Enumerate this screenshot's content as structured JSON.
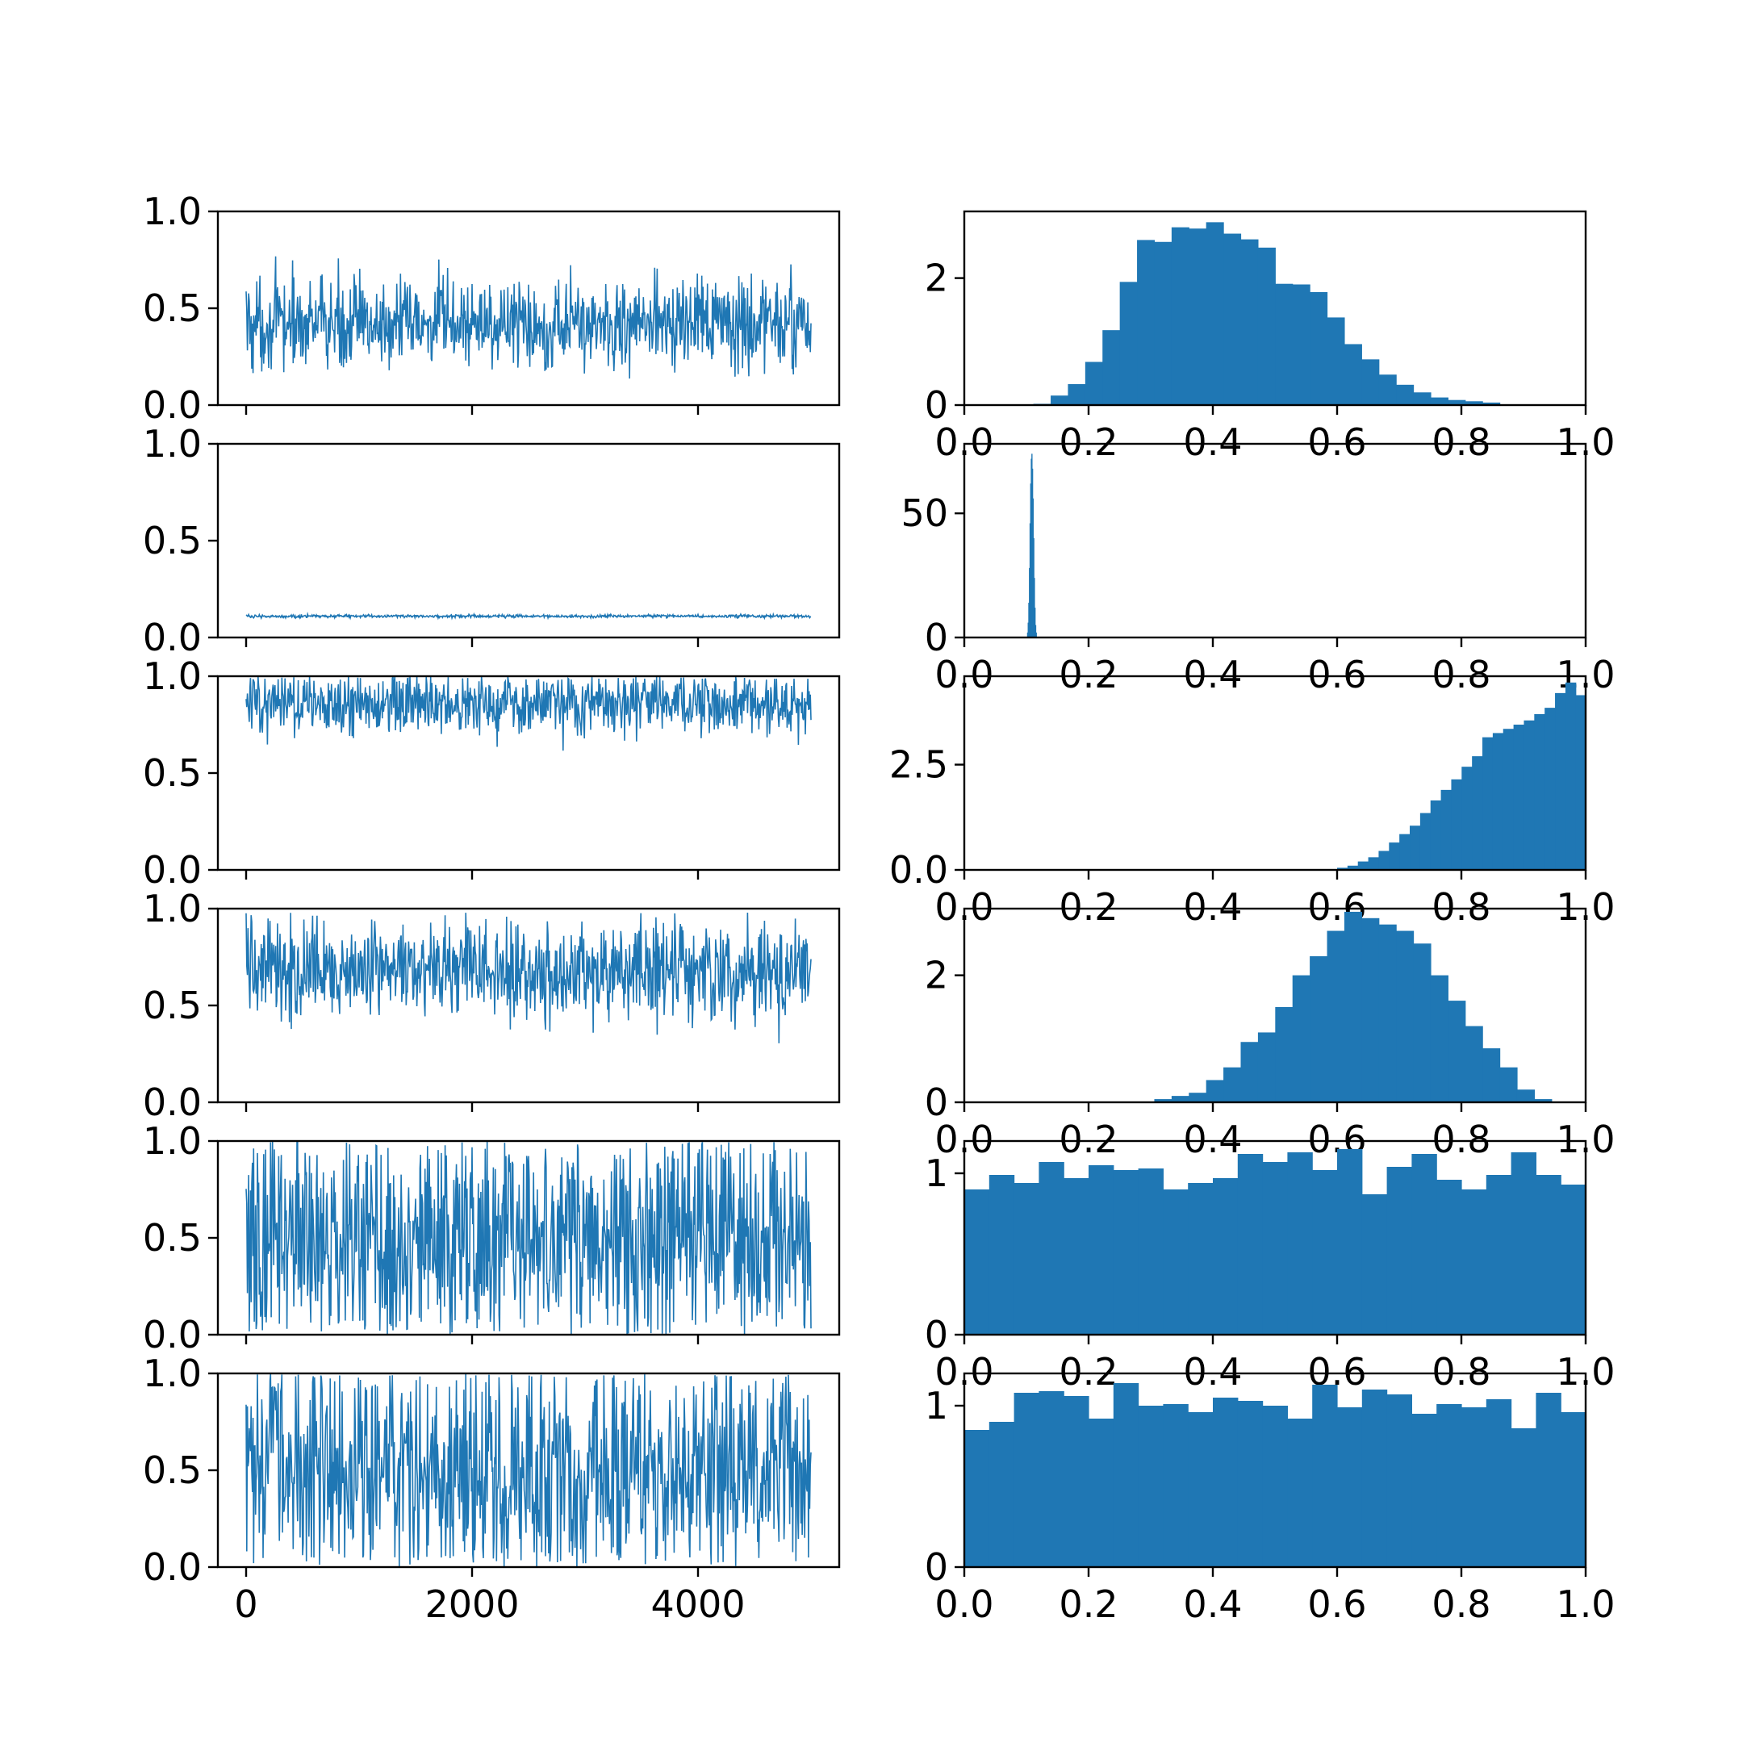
{
  "figure": {
    "line_color": "#1f77b4",
    "bar_color": "#1f77b4"
  },
  "chart_data": [
    {
      "type": "line",
      "panel": "trace-1",
      "x_range": [
        0,
        5000
      ],
      "xlim": [
        -250,
        5250
      ],
      "ylim": [
        0,
        1
      ],
      "yticks": [
        "0.0",
        "0.5",
        "1.0"
      ],
      "xticks": [
        "0",
        "2000",
        "4000"
      ],
      "xticks_visible": false,
      "trace": {
        "center": 0.42,
        "low": 0.13,
        "high": 0.82,
        "noise": 0.12
      }
    },
    {
      "type": "bar",
      "panel": "hist-1",
      "xlim": [
        0,
        1
      ],
      "ylim": [
        0,
        3.05
      ],
      "yticks": [
        "0",
        "2"
      ],
      "ytick_values": [
        0,
        2
      ],
      "xticks": [
        "0.0",
        "0.2",
        "0.4",
        "0.6",
        "0.8",
        "1.0"
      ],
      "xticks_visible": true,
      "bin_start": 0.0,
      "bin_width": 0.0278,
      "values": [
        0,
        0,
        0,
        0,
        0.02,
        0.15,
        0.33,
        0.68,
        1.18,
        1.94,
        2.6,
        2.57,
        2.8,
        2.78,
        2.88,
        2.7,
        2.61,
        2.48,
        1.91,
        1.9,
        1.78,
        1.38,
        0.96,
        0.72,
        0.48,
        0.32,
        0.2,
        0.12,
        0.08,
        0.06,
        0.04,
        0,
        0,
        0,
        0,
        0
      ]
    },
    {
      "type": "line",
      "panel": "trace-2",
      "x_range": [
        0,
        5000
      ],
      "xlim": [
        -250,
        5250
      ],
      "ylim": [
        0,
        1
      ],
      "yticks": [
        "0.0",
        "0.5",
        "1.0"
      ],
      "xticks": [
        "0",
        "2000",
        "4000"
      ],
      "xticks_visible": false,
      "trace": {
        "center": 0.11,
        "low": 0.1,
        "high": 0.12,
        "noise": 0.004
      }
    },
    {
      "type": "bar",
      "panel": "hist-2",
      "xlim": [
        0,
        1
      ],
      "ylim": [
        0,
        78
      ],
      "yticks": [
        "0",
        "50"
      ],
      "ytick_values": [
        0,
        50
      ],
      "xticks": [
        "0.0",
        "0.2",
        "0.4",
        "0.6",
        "0.8",
        "1.0"
      ],
      "xticks_visible": true,
      "bin_start": 0.1,
      "bin_width": 0.001,
      "values": [
        0,
        2,
        6,
        14,
        28,
        46,
        62,
        72,
        74,
        68,
        56,
        40,
        24,
        12,
        5,
        2,
        0
      ]
    },
    {
      "type": "line",
      "panel": "trace-3",
      "x_range": [
        0,
        5000
      ],
      "xlim": [
        -250,
        5250
      ],
      "ylim": [
        0,
        1
      ],
      "yticks": [
        "0.0",
        "0.5",
        "1.0"
      ],
      "xticks": [
        "0",
        "2000",
        "4000"
      ],
      "xticks_visible": false,
      "trace": {
        "center": 0.86,
        "low": 0.6,
        "high": 1.0,
        "noise": 0.08
      }
    },
    {
      "type": "bar",
      "panel": "hist-3",
      "xlim": [
        0,
        1
      ],
      "ylim": [
        0,
        4.6
      ],
      "yticks": [
        "0.0",
        "2.5"
      ],
      "ytick_values": [
        0,
        2.5
      ],
      "xticks": [
        "0.0",
        "0.2",
        "0.4",
        "0.6",
        "0.8",
        "1.0"
      ],
      "xticks_visible": true,
      "bin_start": 0.6,
      "bin_width": 0.0167,
      "values": [
        0.05,
        0.1,
        0.2,
        0.3,
        0.45,
        0.65,
        0.85,
        1.05,
        1.35,
        1.65,
        1.9,
        2.15,
        2.45,
        2.7,
        3.15,
        3.25,
        3.35,
        3.45,
        3.55,
        3.7,
        3.85,
        4.2,
        4.45,
        4.15,
        4.15
      ]
    },
    {
      "type": "line",
      "panel": "trace-4",
      "x_range": [
        0,
        5000
      ],
      "xlim": [
        -250,
        5250
      ],
      "ylim": [
        0,
        1
      ],
      "yticks": [
        "0.0",
        "0.5",
        "1.0"
      ],
      "xticks": [
        "0",
        "2000",
        "4000"
      ],
      "xticks_visible": false,
      "trace": {
        "center": 0.68,
        "low": 0.3,
        "high": 0.98,
        "noise": 0.13
      }
    },
    {
      "type": "bar",
      "panel": "hist-4",
      "xlim": [
        0,
        1
      ],
      "ylim": [
        0,
        3.05
      ],
      "yticks": [
        "0",
        "2"
      ],
      "ytick_values": [
        0,
        2
      ],
      "xticks": [
        "0.0",
        "0.2",
        "0.4",
        "0.6",
        "0.8",
        "1.0"
      ],
      "xticks_visible": true,
      "bin_start": 0.0,
      "bin_width": 0.0278,
      "values": [
        0,
        0,
        0,
        0,
        0,
        0,
        0,
        0,
        0,
        0,
        0,
        0.05,
        0.1,
        0.15,
        0.35,
        0.55,
        0.95,
        1.1,
        1.5,
        2.0,
        2.3,
        2.7,
        3.0,
        2.9,
        2.8,
        2.7,
        2.5,
        2.0,
        1.6,
        1.2,
        0.85,
        0.55,
        0.2,
        0.05,
        0,
        0
      ]
    },
    {
      "type": "line",
      "panel": "trace-5",
      "x_range": [
        0,
        5000
      ],
      "xlim": [
        -250,
        5250
      ],
      "ylim": [
        0,
        1
      ],
      "yticks": [
        "0.0",
        "0.5",
        "1.0"
      ],
      "xticks": [
        "0",
        "2000",
        "4000"
      ],
      "xticks_visible": false,
      "trace": {
        "center": 0.5,
        "low": 0.0,
        "high": 1.0,
        "noise": 0.29
      }
    },
    {
      "type": "bar",
      "panel": "hist-5",
      "xlim": [
        0,
        1
      ],
      "ylim": [
        0,
        1.2
      ],
      "yticks": [
        "0",
        "1"
      ],
      "ytick_values": [
        0,
        1
      ],
      "xticks": [
        "0.0",
        "0.2",
        "0.4",
        "0.6",
        "0.8",
        "1.0"
      ],
      "xticks_visible": true,
      "bin_start": 0.0,
      "bin_width": 0.04,
      "values": [
        0.9,
        0.99,
        0.94,
        1.07,
        0.97,
        1.05,
        1.02,
        1.03,
        0.9,
        0.94,
        0.97,
        1.12,
        1.07,
        1.13,
        1.02,
        1.15,
        0.87,
        1.04,
        1.12,
        0.96,
        0.9,
        0.99,
        1.13,
        0.99,
        0.93
      ]
    },
    {
      "type": "line",
      "panel": "trace-6",
      "x_range": [
        0,
        5000
      ],
      "xlim": [
        -250,
        5250
      ],
      "ylim": [
        0,
        1
      ],
      "yticks": [
        "0.0",
        "0.5",
        "1.0"
      ],
      "xticks": [
        "0",
        "2000",
        "4000"
      ],
      "xticks_visible": true,
      "trace": {
        "center": 0.5,
        "low": 0.0,
        "high": 1.0,
        "noise": 0.29
      }
    },
    {
      "type": "bar",
      "panel": "hist-6",
      "xlim": [
        0,
        1
      ],
      "ylim": [
        0,
        1.2
      ],
      "yticks": [
        "0",
        "1"
      ],
      "ytick_values": [
        0,
        1
      ],
      "xticks": [
        "0.0",
        "0.2",
        "0.4",
        "0.6",
        "0.8",
        "1.0"
      ],
      "xticks_visible": true,
      "bin_start": 0.0,
      "bin_width": 0.04,
      "values": [
        0.85,
        0.9,
        1.08,
        1.09,
        1.06,
        0.92,
        1.14,
        1.0,
        1.01,
        0.96,
        1.05,
        1.03,
        1.0,
        0.92,
        1.13,
        0.99,
        1.1,
        1.07,
        0.95,
        1.01,
        0.99,
        1.04,
        0.86,
        1.08,
        0.96
      ]
    }
  ]
}
